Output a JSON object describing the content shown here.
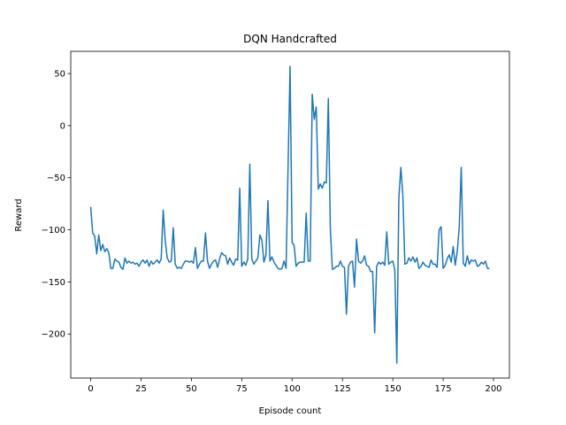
{
  "chart_data": {
    "type": "line",
    "title": "DQN Handcrafted",
    "x_label": "Episode count",
    "y_label": "Reward",
    "x": [
      0,
      1,
      2,
      3,
      4,
      5,
      6,
      7,
      8,
      9,
      10,
      11,
      12,
      13,
      14,
      15,
      16,
      17,
      18,
      19,
      20,
      21,
      22,
      23,
      24,
      25,
      26,
      27,
      28,
      29,
      30,
      31,
      32,
      33,
      34,
      35,
      36,
      37,
      38,
      39,
      40,
      41,
      42,
      43,
      44,
      45,
      46,
      47,
      48,
      49,
      50,
      51,
      52,
      53,
      54,
      55,
      56,
      57,
      58,
      59,
      60,
      61,
      62,
      63,
      64,
      65,
      66,
      67,
      68,
      69,
      70,
      71,
      72,
      73,
      74,
      75,
      76,
      77,
      78,
      79,
      80,
      81,
      82,
      83,
      84,
      85,
      86,
      87,
      88,
      89,
      90,
      91,
      92,
      93,
      94,
      95,
      96,
      97,
      98,
      99,
      100,
      101,
      102,
      103,
      104,
      105,
      106,
      107,
      108,
      109,
      110,
      111,
      112,
      113,
      114,
      115,
      116,
      117,
      118,
      119,
      120,
      121,
      122,
      123,
      124,
      125,
      126,
      127,
      128,
      129,
      130,
      131,
      132,
      133,
      134,
      135,
      136,
      137,
      138,
      139,
      140,
      141,
      142,
      143,
      144,
      145,
      146,
      147,
      148,
      149,
      150,
      151,
      152,
      153,
      154,
      155,
      156,
      157,
      158,
      159,
      160,
      161,
      162,
      163,
      164,
      165,
      166,
      167,
      168,
      169,
      170,
      171,
      172,
      173,
      174,
      175,
      176,
      177,
      178,
      179,
      180,
      181,
      182,
      183,
      184,
      185,
      186,
      187,
      188,
      189,
      190,
      191,
      192,
      193,
      194,
      195,
      196,
      197,
      198
    ],
    "values": [
      -78,
      -103,
      -106,
      -123,
      -105,
      -120,
      -114,
      -121,
      -118,
      -122,
      -137,
      -137,
      -128,
      -130,
      -131,
      -136,
      -138,
      -127,
      -132,
      -130,
      -132,
      -131,
      -133,
      -132,
      -135,
      -131,
      -129,
      -132,
      -129,
      -135,
      -130,
      -133,
      -131,
      -129,
      -132,
      -128,
      -81,
      -110,
      -127,
      -131,
      -130,
      -98,
      -133,
      -137,
      -136,
      -137,
      -133,
      -130,
      -130,
      -131,
      -130,
      -132,
      -117,
      -137,
      -133,
      -130,
      -130,
      -103,
      -130,
      -137,
      -133,
      -130,
      -129,
      -136,
      -128,
      -122,
      -124,
      -125,
      -133,
      -127,
      -131,
      -134,
      -128,
      -129,
      -60,
      -135,
      -131,
      -134,
      -128,
      -37,
      -128,
      -133,
      -130,
      -127,
      -105,
      -110,
      -131,
      -124,
      -72,
      -130,
      -126,
      -131,
      -134,
      -137,
      -138,
      -137,
      -130,
      -137,
      -40,
      57,
      -112,
      -115,
      -135,
      -132,
      -131,
      -131,
      -131,
      -84,
      -130,
      -130,
      30,
      6,
      18,
      -61,
      -56,
      -60,
      -54,
      -55,
      26,
      -100,
      -138,
      -137,
      -135,
      -135,
      -130,
      -135,
      -136,
      -181,
      -135,
      -131,
      -130,
      -155,
      -109,
      -130,
      -132,
      -130,
      -125,
      -134,
      -135,
      -140,
      -140,
      -199,
      -135,
      -131,
      -133,
      -131,
      -134,
      -102,
      -133,
      -131,
      -130,
      -138,
      -228,
      -70,
      -40,
      -67,
      -133,
      -132,
      -127,
      -130,
      -126,
      -131,
      -127,
      -137,
      -135,
      -131,
      -134,
      -135,
      -136,
      -129,
      -133,
      -133,
      -136,
      -100,
      -97,
      -137,
      -134,
      -128,
      -124,
      -131,
      -116,
      -134,
      -121,
      -97,
      -40,
      -132,
      -135,
      -125,
      -133,
      -129,
      -130,
      -129,
      -135,
      -134,
      -131,
      -133,
      -130,
      -137,
      -137
    ],
    "color": "#1f77b4",
    "xlim": [
      -9.9,
      207.9
    ],
    "xticks": [
      0,
      25,
      50,
      75,
      100,
      125,
      150,
      175,
      200
    ],
    "ylim": [
      -242.3,
      71.3
    ],
    "yticks": [
      50,
      0,
      {
        "value": -50,
        "label": "−50"
      },
      {
        "value": -100,
        "label": "−100"
      },
      {
        "value": -150,
        "label": "−150"
      },
      {
        "value": -200,
        "label": "−200"
      }
    ]
  }
}
